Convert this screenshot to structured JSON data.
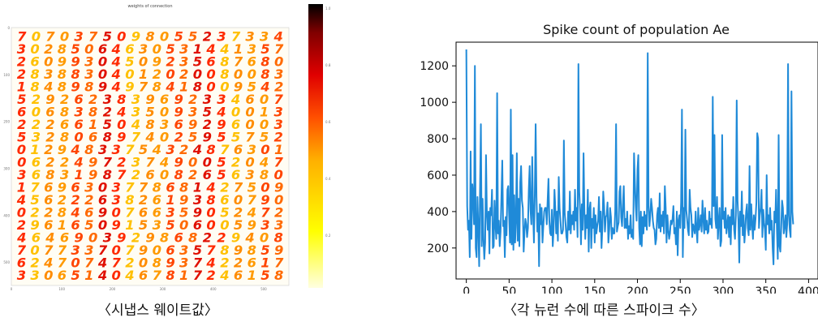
{
  "captions": {
    "left": "〈시냅스 웨이트값〉",
    "right": "〈각 뉴런 수에 따른 스파이크 수〉"
  },
  "heatmap": {
    "title": "weights of connection",
    "digit_rows": [
      "7070375098055237334",
      "3028506463053144135 7",
      "2609930450923568 7680",
      "2838830401202008 0083",
      "1848989497841800 9542",
      "5292623839692334607",
      "6068382435093540013",
      "2226615048369296003",
      "5328068974025955752",
      "0129483375432487630 1",
      "0622497237490052047",
      "3683198726082656380",
      "1769630377868142 7509",
      "4562226382619386079 0",
      "0228469076635905247 2",
      "2961650915350600593 3",
      "4646903929868229408",
      "7077337079063578985 9",
      "6247074720893742261 7",
      "3306514046781724615 8"
    ],
    "x_ticks": [
      "0",
      "100",
      "200",
      "300",
      "400",
      "500"
    ],
    "y_ticks": [
      "0",
      "100",
      "200",
      "300",
      "400",
      "500"
    ],
    "colorbar_ticks": [
      "1.0",
      "0.8",
      "0.6",
      "0.4",
      "0.2"
    ],
    "colormap": [
      "#ffffe0",
      "#ffff00",
      "#ffb000",
      "#ff5000",
      "#e00000",
      "#900000",
      "#000000"
    ]
  },
  "chart_data": {
    "type": "line",
    "title": "Spike count of population Ae",
    "xlim": [
      -12,
      411
    ],
    "ylim": [
      30,
      1330
    ],
    "x_ticks": [
      0,
      50,
      100,
      150,
      200,
      250,
      300,
      350,
      400
    ],
    "y_ticks": [
      200,
      400,
      600,
      800,
      1000,
      1200
    ],
    "color": "#1f8ad8",
    "x_start": 0,
    "x_step": 1,
    "values": [
      1290,
      430,
      300,
      350,
      150,
      730,
      250,
      550,
      480,
      330,
      1200,
      200,
      150,
      480,
      310,
      100,
      520,
      880,
      210,
      470,
      250,
      140,
      230,
      710,
      390,
      300,
      400,
      170,
      420,
      380,
      520,
      200,
      210,
      460,
      330,
      250,
      1050,
      280,
      350,
      210,
      290,
      480,
      680,
      320,
      350,
      150,
      370,
      270,
      520,
      540,
      380,
      230,
      960,
      220,
      710,
      190,
      490,
      230,
      350,
      720,
      240,
      470,
      210,
      560,
      650,
      460,
      420,
      180,
      290,
      360,
      330,
      260,
      310,
      520,
      650,
      410,
      330,
      700,
      400,
      230,
      490,
      880,
      480,
      290,
      390,
      100,
      440,
      330,
      420,
      230,
      320,
      400,
      420,
      420,
      330,
      460,
      580,
      350,
      280,
      270,
      410,
      210,
      300,
      520,
      420,
      280,
      400,
      240,
      590,
      420,
      350,
      280,
      280,
      300,
      790,
      390,
      330,
      260,
      230,
      400,
      300,
      510,
      280,
      380,
      330,
      400,
      300,
      520,
      350,
      420,
      260,
      1210,
      510,
      400,
      220,
      440,
      300,
      720,
      400,
      250,
      380,
      310,
      520,
      180,
      410,
      450,
      200,
      360,
      310,
      420,
      230,
      380,
      280,
      320,
      350,
      480,
      290,
      400,
      200,
      310,
      510,
      430,
      290,
      370,
      380,
      450,
      230,
      300,
      420,
      370,
      250,
      310,
      280,
      280,
      400,
      880,
      290,
      320,
      340,
      510,
      540,
      370,
      320,
      440,
      540,
      310,
      360,
      310,
      400,
      250,
      320,
      280,
      380,
      260,
      300,
      250,
      720,
      560,
      430,
      350,
      630,
      710,
      310,
      220,
      400,
      210,
      370,
      280,
      400,
      320,
      380,
      300,
      1270,
      430,
      320,
      380,
      470,
      420,
      350,
      310,
      300,
      220,
      250,
      380,
      420,
      310,
      500,
      290,
      380,
      320,
      400,
      280,
      540,
      420,
      230,
      380,
      300,
      250,
      280,
      350,
      330,
      360,
      430,
      280,
      310,
      220,
      400,
      160,
      350,
      380,
      310,
      450,
      960,
      150,
      420,
      310,
      850,
      410,
      360,
      300,
      270,
      520,
      420,
      380,
      260,
      330,
      310,
      280,
      400,
      300,
      230,
      420,
      300,
      330,
      380,
      290,
      460,
      360,
      280,
      420,
      300,
      350,
      280,
      290,
      400,
      330,
      360,
      310,
      1030,
      430,
      820,
      360,
      310,
      480,
      250,
      350,
      420,
      210,
      240,
      820,
      360,
      400,
      310,
      420,
      280,
      330,
      380,
      260,
      370,
      220,
      410,
      330,
      480,
      300,
      250,
      380,
      1010,
      460,
      350,
      120,
      400,
      320,
      510,
      270,
      380,
      230,
      300,
      400,
      440,
      310,
      270,
      650,
      300,
      440,
      330,
      250,
      380,
      300,
      360,
      450,
      830,
      800,
      310,
      380,
      420,
      520,
      260,
      410,
      340,
      300,
      190,
      600,
      330,
      380,
      280,
      420,
      300,
      350,
      200,
      110,
      400,
      340,
      520,
      300,
      140,
      820,
      210,
      180,
      310,
      460,
      420,
      280,
      320,
      380,
      260,
      330,
      1210,
      380,
      300,
      260,
      1060,
      400,
      330
    ]
  }
}
